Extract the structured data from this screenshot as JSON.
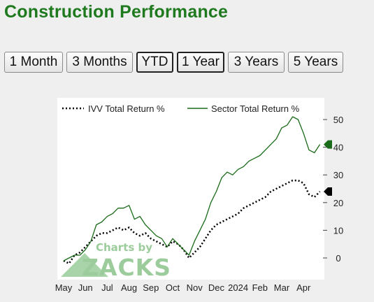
{
  "title": "Construction Performance",
  "range_buttons": [
    {
      "label": "1 Month",
      "active": false
    },
    {
      "label": "3 Months",
      "active": false
    },
    {
      "label": "YTD",
      "active": true
    },
    {
      "label": "1 Year",
      "active": true
    },
    {
      "label": "3 Years",
      "active": false
    },
    {
      "label": "5 Years",
      "active": false
    }
  ],
  "watermark": {
    "line1": "Charts by",
    "line2": "ZACKS"
  },
  "colors": {
    "sector": "#1a6b1a",
    "ivv": "#000000",
    "watermark": "#9ccc9c",
    "title": "#1f7a1f"
  },
  "chart_data": {
    "type": "line",
    "x_labels": [
      "May",
      "Jun",
      "Jul",
      "Aug",
      "Sep",
      "Oct",
      "Nov",
      "Dec",
      "2024",
      "Feb",
      "Mar",
      "Apr"
    ],
    "y_ticks": [
      0,
      10,
      20,
      30,
      40,
      50
    ],
    "ylim": [
      -7,
      55
    ],
    "grid": false,
    "legend_placement": "top",
    "series": [
      {
        "name": "IVV Total Return %",
        "style": "dotted",
        "color": "#000000",
        "end_value": 24,
        "points": [
          [
            0,
            -1
          ],
          [
            0.25,
            -2
          ],
          [
            0.5,
            1
          ],
          [
            0.75,
            2
          ],
          [
            1,
            4
          ],
          [
            1.25,
            6
          ],
          [
            1.5,
            8
          ],
          [
            1.75,
            9
          ],
          [
            2,
            9
          ],
          [
            2.25,
            10
          ],
          [
            2.5,
            11
          ],
          [
            2.75,
            10
          ],
          [
            3,
            11
          ],
          [
            3.25,
            9
          ],
          [
            3.5,
            8
          ],
          [
            3.75,
            9
          ],
          [
            4,
            7
          ],
          [
            4.25,
            6
          ],
          [
            4.5,
            5
          ],
          [
            4.75,
            4
          ],
          [
            5,
            6
          ],
          [
            5.25,
            5
          ],
          [
            5.5,
            3
          ],
          [
            5.75,
            0
          ],
          [
            6,
            2
          ],
          [
            6.25,
            4
          ],
          [
            6.5,
            7
          ],
          [
            6.75,
            10
          ],
          [
            7,
            12
          ],
          [
            7.25,
            13
          ],
          [
            7.5,
            14
          ],
          [
            7.75,
            15
          ],
          [
            8,
            16
          ],
          [
            8.25,
            18
          ],
          [
            8.5,
            19
          ],
          [
            8.75,
            20
          ],
          [
            9,
            21
          ],
          [
            9.25,
            22
          ],
          [
            9.5,
            24
          ],
          [
            9.75,
            25
          ],
          [
            10,
            26
          ],
          [
            10.25,
            27
          ],
          [
            10.5,
            28
          ],
          [
            10.75,
            28
          ],
          [
            11,
            27
          ],
          [
            11.25,
            23
          ],
          [
            11.5,
            22
          ],
          [
            11.75,
            24
          ]
        ]
      },
      {
        "name": "Sector Total Return %",
        "style": "solid",
        "color": "#1a6b1a",
        "end_value": 41,
        "points": [
          [
            0,
            -1
          ],
          [
            0.25,
            0
          ],
          [
            0.5,
            1
          ],
          [
            0.75,
            1
          ],
          [
            1,
            3
          ],
          [
            1.25,
            6
          ],
          [
            1.5,
            12
          ],
          [
            1.75,
            13
          ],
          [
            2,
            15
          ],
          [
            2.25,
            16
          ],
          [
            2.5,
            18
          ],
          [
            2.75,
            18
          ],
          [
            3,
            19
          ],
          [
            3.25,
            14
          ],
          [
            3.5,
            15
          ],
          [
            3.75,
            12
          ],
          [
            4,
            10
          ],
          [
            4.25,
            8
          ],
          [
            4.5,
            7
          ],
          [
            4.75,
            4
          ],
          [
            5,
            7
          ],
          [
            5.25,
            5
          ],
          [
            5.5,
            3
          ],
          [
            5.75,
            1
          ],
          [
            6,
            6
          ],
          [
            6.25,
            10
          ],
          [
            6.5,
            14
          ],
          [
            6.75,
            20
          ],
          [
            7,
            24
          ],
          [
            7.25,
            29
          ],
          [
            7.5,
            31
          ],
          [
            7.75,
            30
          ],
          [
            8,
            32
          ],
          [
            8.25,
            33
          ],
          [
            8.5,
            35
          ],
          [
            8.75,
            36
          ],
          [
            9,
            37
          ],
          [
            9.25,
            39
          ],
          [
            9.5,
            41
          ],
          [
            9.75,
            43
          ],
          [
            10,
            47
          ],
          [
            10.25,
            48
          ],
          [
            10.5,
            51
          ],
          [
            10.75,
            50
          ],
          [
            11,
            45
          ],
          [
            11.25,
            39
          ],
          [
            11.5,
            38
          ],
          [
            11.75,
            41
          ]
        ]
      }
    ]
  }
}
